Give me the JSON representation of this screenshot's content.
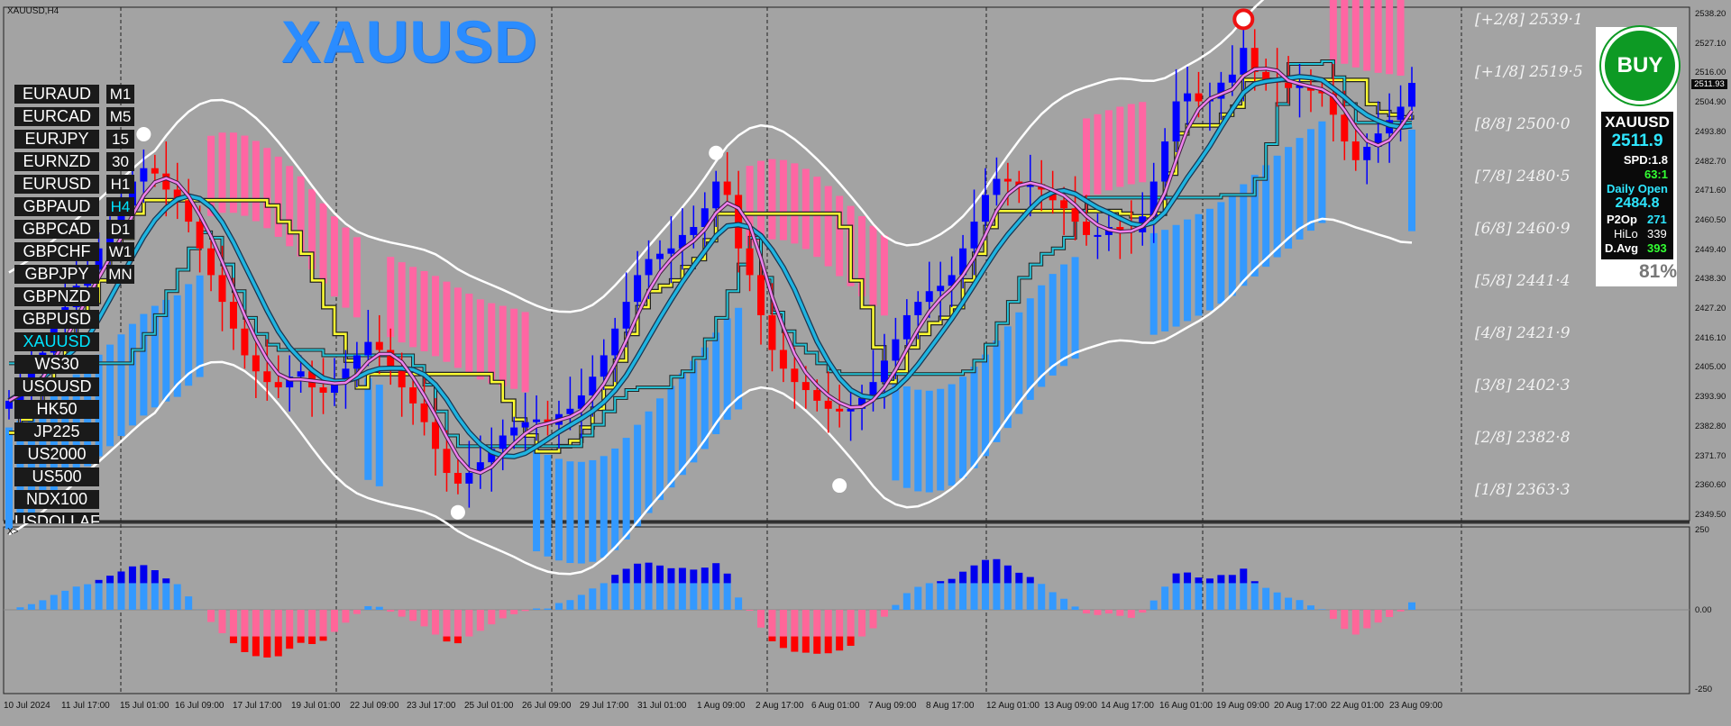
{
  "window": {
    "chart_label": "XAUUSD,H4",
    "big_symbol": "XAUUSD",
    "osc_label": "X>"
  },
  "symbols": [
    "EURAUD",
    "EURCAD",
    "EURJPY",
    "EURNZD",
    "EURUSD",
    "GBPAUD",
    "GBPCAD",
    "GBPCHF",
    "GBPJPY",
    "GBPNZD",
    "GBPUSD",
    "XAUUSD",
    "WS30",
    "USOUSD",
    "HK50",
    "JP225",
    "US2000",
    "US500",
    "NDX100",
    "USDOLLAF"
  ],
  "active_symbol": "XAUUSD",
  "timeframes": [
    "M1",
    "M5",
    "15",
    "30",
    "H1",
    "H4",
    "D1",
    "W1",
    "MN"
  ],
  "active_timeframe": "H4",
  "murrey_levels": [
    "[+2/8] 2539·1",
    "[+1/8] 2519·5",
    "[8/8] 2500·0",
    "[7/8] 2480·5",
    "[6/8] 2460·9",
    "[5/8] 2441·4",
    "[4/8] 2421·9",
    "[3/8] 2402·3",
    "[2/8] 2382·8",
    "[1/8] 2363·3"
  ],
  "price_axis": [
    "2538.20",
    "2527.10",
    "2516.00",
    "2504.90",
    "2493.80",
    "2482.70",
    "2471.60",
    "2460.50",
    "2449.40",
    "2438.30",
    "2427.20",
    "2416.10",
    "2405.00",
    "2393.90",
    "2382.80",
    "2371.70",
    "2360.60",
    "2349.50"
  ],
  "current_price_tag": "2511.93",
  "osc_axis": [
    "250",
    "0.00",
    "-250"
  ],
  "time_axis": [
    "10 Jul 2024",
    "11 Jul 17:00",
    "15 Jul 01:00",
    "16 Jul 09:00",
    "17 Jul 17:00",
    "19 Jul 01:00",
    "22 Jul 09:00",
    "23 Jul 17:00",
    "25 Jul 01:00",
    "26 Jul 09:00",
    "29 Jul 17:00",
    "31 Jul 01:00",
    "1 Aug 09:00",
    "2 Aug 17:00",
    "6 Aug 01:00",
    "7 Aug 09:00",
    "8 Aug 17:00",
    "12 Aug 01:00",
    "13 Aug 09:00",
    "14 Aug 17:00",
    "16 Aug 01:00",
    "19 Aug 09:00",
    "20 Aug 17:00",
    "22 Aug 01:00",
    "23 Aug 09:00"
  ],
  "panel": {
    "signal": "BUY",
    "symbol": "XAUUSD",
    "price": "2511.9",
    "spread": "SPD:1.8",
    "ratio": "63:1",
    "daily_open_label": "Daily Open",
    "daily_open": "2484.8",
    "p2op_label": "P2Op",
    "p2op": "271",
    "hilo_label": "HiLo",
    "hilo": "339",
    "davg_label": "D.Avg",
    "davg": "393",
    "percent": "81%"
  },
  "colors": {
    "bull": "#0000ff",
    "bear": "#ff0000",
    "ma_fast": "#ee82ee",
    "ma_slow": "#1fb4e0",
    "envelope": "#ffffff",
    "channel": "#ffff33",
    "cloud_up": "#3399ff",
    "cloud_down": "#ff66a3",
    "osc_up": "#3399ff",
    "osc_up_strong": "#0000ee",
    "osc_down": "#ff6699",
    "osc_down_strong": "#ff0000"
  },
  "chart_data": {
    "type": "candlestick",
    "symbol": "XAUUSD",
    "timeframe": "H4",
    "ylim": [
      2349.5,
      2538.2
    ],
    "close_approx": [
      2393,
      2398,
      2404,
      2411,
      2420,
      2428,
      2436,
      2442,
      2450,
      2458,
      2466,
      2475,
      2480,
      2478,
      2472,
      2468,
      2460,
      2450,
      2440,
      2430,
      2420,
      2410,
      2404,
      2400,
      2398,
      2402,
      2404,
      2398,
      2396,
      2400,
      2405,
      2410,
      2415,
      2412,
      2405,
      2398,
      2392,
      2385,
      2375,
      2366,
      2362,
      2366,
      2370,
      2375,
      2380,
      2383,
      2385,
      2386,
      2384,
      2388,
      2390,
      2395,
      2402,
      2410,
      2420,
      2430,
      2440,
      2446,
      2448,
      2450,
      2455,
      2458,
      2465,
      2475,
      2470,
      2450,
      2440,
      2425,
      2412,
      2405,
      2400,
      2397,
      2393,
      2390,
      2389,
      2390,
      2394,
      2400,
      2408,
      2416,
      2425,
      2430,
      2434,
      2436,
      2440,
      2450,
      2460,
      2470,
      2476,
      2475,
      2473,
      2474,
      2472,
      2468,
      2465,
      2460,
      2455,
      2455,
      2458,
      2457,
      2456,
      2462,
      2475,
      2490,
      2505,
      2508,
      2505,
      2506,
      2512,
      2515,
      2525,
      2516,
      2513,
      2512,
      2510,
      2511,
      2509,
      2508,
      2500,
      2490,
      2483,
      2488,
      2493,
      2498,
      2503,
      2511.9
    ],
    "swing_points": [
      {
        "price": 2488,
        "kind": "high"
      },
      {
        "price": 2356,
        "kind": "low"
      },
      {
        "price": 2481,
        "kind": "high"
      },
      {
        "price": 2366,
        "kind": "low"
      },
      {
        "price": 2531,
        "kind": "high"
      }
    ],
    "oscillator": {
      "ylim": [
        -250,
        250
      ]
    }
  }
}
